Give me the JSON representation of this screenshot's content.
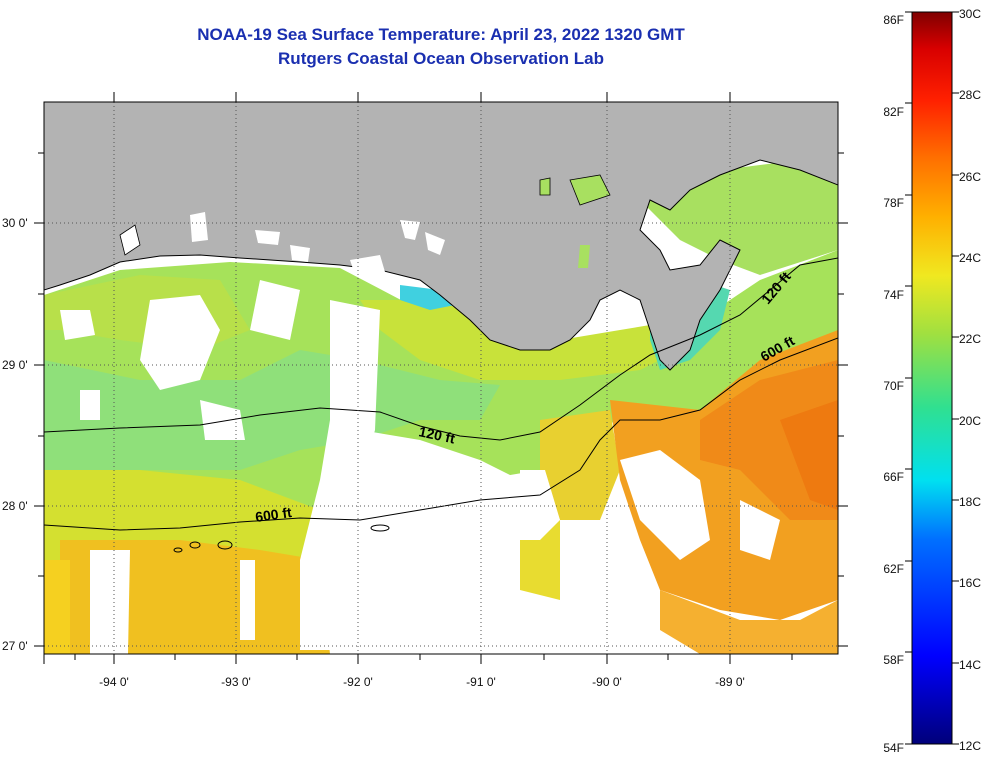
{
  "title": "NOAA-19 Sea Surface Temperature:  April 23, 2022 1320 GMT",
  "subtitle": "Rutgers Coastal Ocean Observation Lab",
  "map": {
    "longitude_labels": [
      "-94 0'",
      "-93 0'",
      "-92 0'",
      "-91 0'",
      "-90 0'",
      "-89 0'"
    ],
    "latitude_labels": [
      "30 0'",
      "29 0'",
      "28 0'",
      "27 0'"
    ],
    "contour_labels": [
      "120 ft",
      "600 ft",
      "120 ft",
      "600 ft"
    ],
    "colors": {
      "land": "#b3b3b3",
      "no_data": "#ffffff",
      "title": "#1a2fb0"
    }
  },
  "colorbar": {
    "fahrenheit_labels": [
      "86F",
      "82F",
      "78F",
      "74F",
      "70F",
      "66F",
      "62F",
      "58F",
      "54F"
    ],
    "celsius_labels": [
      "30C",
      "28C",
      "26C",
      "24C",
      "22C",
      "20C",
      "18C",
      "16C",
      "14C",
      "12C"
    ]
  }
}
